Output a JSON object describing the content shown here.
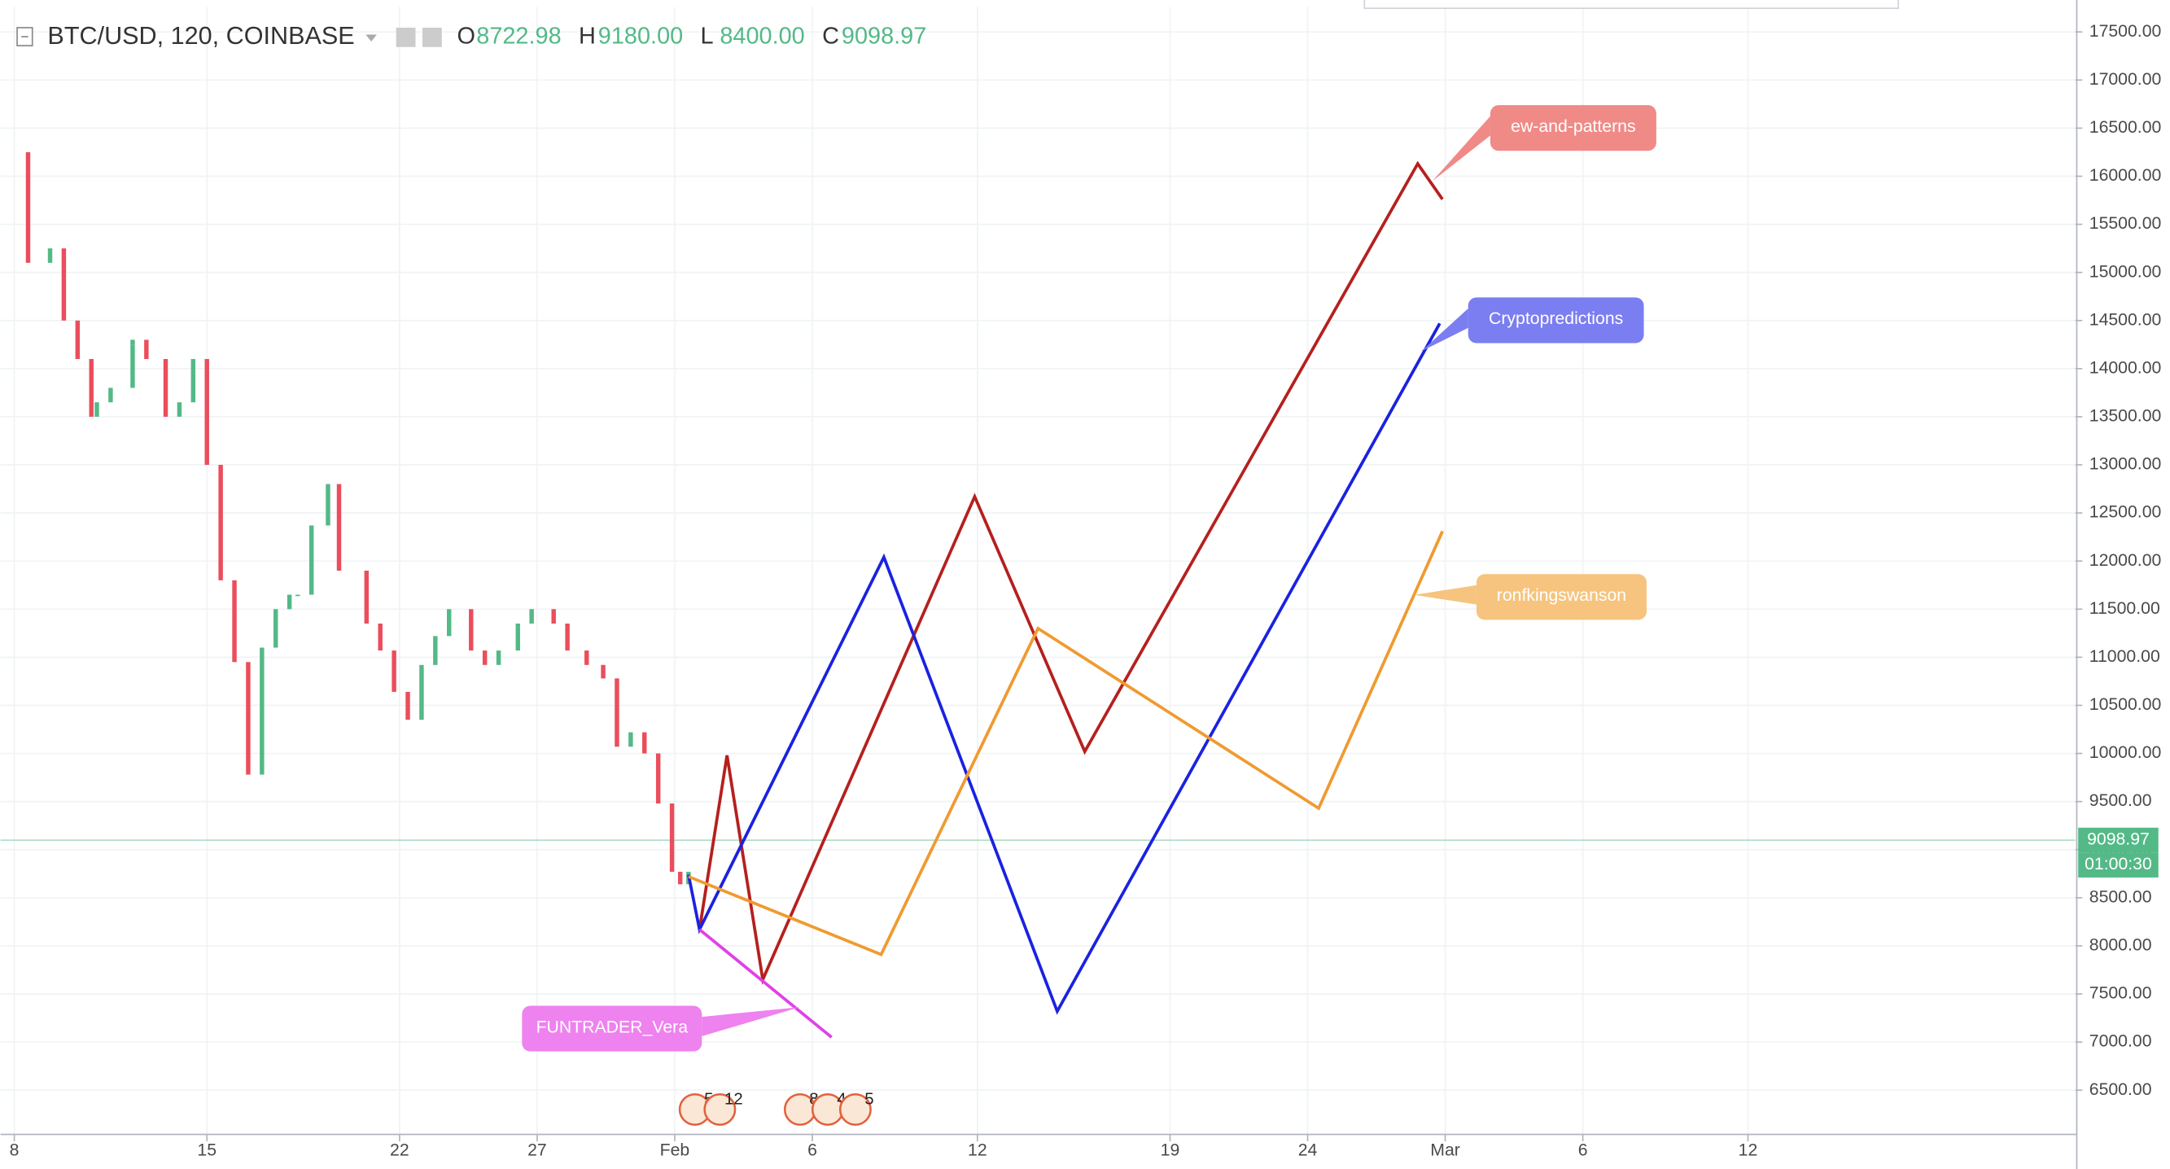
{
  "chart_data": {
    "type": "candlestick",
    "symbol": "BTC/USD, 120, COINBASE",
    "ohlc": [
      {
        "key": "O",
        "value": {
          "value": 8722.98,
          "label": "8722.98"
        }
      },
      {
        "key": "H",
        "value": {
          "value": 9180,
          "label": "9180.00"
        }
      },
      {
        "key": "L",
        "value": {
          "value": 8400,
          "label": "8400.00"
        }
      },
      {
        "key": "C",
        "value": {
          "value": 9098.97,
          "label": "9098.97"
        }
      }
    ],
    "x": [
      0,
      0.5,
      1.3,
      1.8,
      2.3,
      2.8,
      3,
      3.5,
      4.3,
      4.3,
      4.8,
      5.5,
      6,
      6.5,
      7,
      7.5,
      8,
      8.5,
      9,
      9.5,
      10,
      10.3,
      10.8,
      11.4,
      11.8,
      12.8,
      13.3,
      13.8,
      14.3,
      14.8,
      15.3,
      15.8,
      16.6,
      17.1,
      17.6,
      18.3,
      18.8,
      19.6,
      20.1,
      20.8,
      21.4,
      21.9,
      22.4,
      22.9,
      23.4,
      23.9,
      24.2,
      24.5
    ],
    "values": [
      16250,
      15100,
      15250,
      14500,
      14100,
      13500,
      13650,
      13800,
      14250,
      14300,
      14100,
      13500,
      13650,
      14100,
      13000,
      11800,
      10950,
      9780,
      11100,
      11500,
      11650,
      11650,
      12370,
      12800,
      11900,
      11350,
      11070,
      10640,
      10350,
      10920,
      11220,
      11500,
      11070,
      10920,
      11070,
      11350,
      11500,
      11350,
      11070,
      10920,
      10780,
      10070,
      10220,
      10000,
      9480,
      8770,
      8640,
      8770
    ],
    "series": [
      {
        "name": "ew-and-patterns",
        "color": "#b5201e",
        "label_color": "#f08a87",
        "x": [
          24.9,
          25.9,
          27.2,
          34.9,
          38.9,
          51,
          51.9
        ],
        "values": [
          8170,
          9980,
          7650,
          12670,
          10020,
          16130,
          15760
        ]
      },
      {
        "name": "Cryptopredictions",
        "color": "#1a22e0",
        "label_color": "#7b7ef0",
        "x": [
          24.5,
          24.9,
          31.6,
          37.9,
          51.8
        ],
        "values": [
          8740,
          8170,
          12040,
          7320,
          14470
        ]
      },
      {
        "name": "ronfkingswanson",
        "color": "#f09a30",
        "label_color": "#f6c47e",
        "x": [
          24.5,
          31.5,
          37.2,
          47.4,
          51.9
        ],
        "values": [
          8720,
          7910,
          11300,
          9430,
          12310
        ]
      },
      {
        "name": "FUNTRADER_Vera",
        "color": "#e040e8",
        "label_color": "#ee82ee",
        "x": [
          24.9,
          29.7
        ],
        "values": [
          8170,
          7050
        ]
      }
    ],
    "current_price": 9098.97,
    "countdown": "01:00:30",
    "events": [
      "5",
      "12",
      "8",
      "4",
      "5"
    ],
    "xlim": [
      -0.5,
      74.9
    ],
    "ylim": [
      6040,
      17760
    ],
    "xticks": [
      {
        "value": 0,
        "label": "8"
      },
      {
        "value": 7,
        "label": "15"
      },
      {
        "value": 14,
        "label": "22"
      },
      {
        "value": 19,
        "label": "27"
      },
      {
        "value": 24,
        "label": "Feb"
      },
      {
        "value": 29,
        "label": "6"
      },
      {
        "value": 35,
        "label": "12"
      },
      {
        "value": 42,
        "label": "19"
      },
      {
        "value": 47,
        "label": "24"
      },
      {
        "value": 52,
        "label": "Mar"
      },
      {
        "value": 57,
        "label": "6"
      },
      {
        "value": 63,
        "label": "12"
      }
    ],
    "yticks": [
      {
        "value": 6500,
        "label": "6500.00"
      },
      {
        "value": 7000,
        "label": "7000.00"
      },
      {
        "value": 7500,
        "label": "7500.00"
      },
      {
        "value": 8000,
        "label": "8000.00"
      },
      {
        "value": 8500,
        "label": "8500.00"
      },
      {
        "value": 9000,
        "label": "9000.00"
      },
      {
        "value": 9500,
        "label": "9500.00"
      },
      {
        "value": 10000,
        "label": "10000.00"
      },
      {
        "value": 10500,
        "label": "10500.00"
      },
      {
        "value": 11000,
        "label": "11000.00"
      },
      {
        "value": 11500,
        "label": "11500.00"
      },
      {
        "value": 12000,
        "label": "12000.00"
      },
      {
        "value": 12500,
        "label": "12500.00"
      },
      {
        "value": 13000,
        "label": "13000.00"
      },
      {
        "value": 13500,
        "label": "13500.00"
      },
      {
        "value": 14000,
        "label": "14000.00"
      },
      {
        "value": 14500,
        "label": "14500.00"
      },
      {
        "value": 15000,
        "label": "15000.00"
      },
      {
        "value": 15500,
        "label": "15500.00"
      },
      {
        "value": 16000,
        "label": "16000.00"
      },
      {
        "value": 16500,
        "label": "16500.00"
      },
      {
        "value": 17000,
        "label": "17000.00"
      },
      {
        "value": 17500,
        "label": "17500.00"
      }
    ],
    "grid": true
  }
}
